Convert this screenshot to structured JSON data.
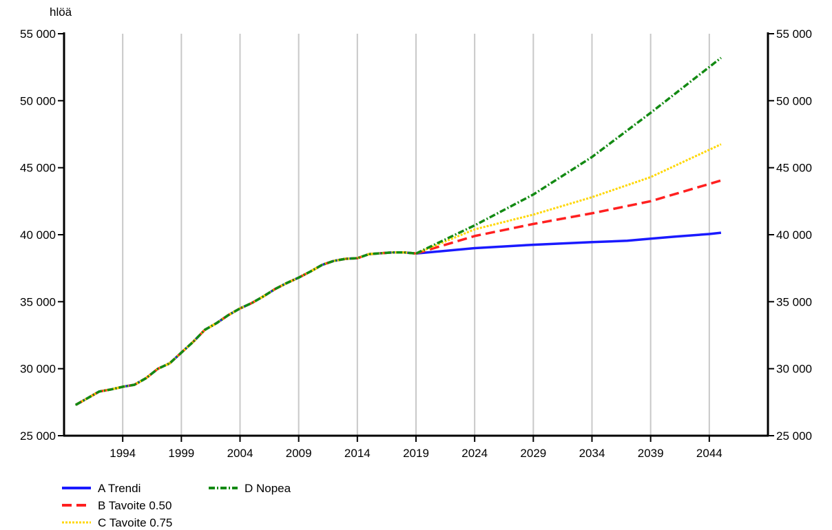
{
  "chart_data": {
    "type": "line",
    "title": "",
    "unit_label": "hlöä",
    "xlabel": "",
    "ylabel": "hlöä",
    "xlim": [
      1989,
      2049
    ],
    "ylim": [
      25000,
      55000
    ],
    "x_ticks": [
      1994,
      1999,
      2004,
      2009,
      2014,
      2019,
      2024,
      2029,
      2034,
      2039,
      2044
    ],
    "x_tick_labels": [
      "1994",
      "1999",
      "2004",
      "2009",
      "2014",
      "2019",
      "2024",
      "2029",
      "2034",
      "2039",
      "2044"
    ],
    "y_ticks": [
      25000,
      30000,
      35000,
      40000,
      45000,
      50000,
      55000
    ],
    "y_tick_labels": [
      "25 000",
      "30 000",
      "35 000",
      "40 000",
      "45 000",
      "50 000",
      "55 000"
    ],
    "grid": "vertical",
    "legend_position": "bottom-left",
    "history": {
      "x": [
        1990,
        1991,
        1992,
        1993,
        1994,
        1995,
        1996,
        1997,
        1998,
        1999,
        2000,
        2001,
        2002,
        2003,
        2004,
        2005,
        2006,
        2007,
        2008,
        2009,
        2010,
        2011,
        2012,
        2013,
        2014,
        2015,
        2016,
        2017,
        2018,
        2019
      ],
      "y": [
        27300,
        27800,
        28300,
        28450,
        28650,
        28800,
        29300,
        30000,
        30400,
        31200,
        32000,
        32900,
        33400,
        34000,
        34500,
        34900,
        35400,
        35950,
        36400,
        36800,
        37250,
        37750,
        38050,
        38200,
        38250,
        38550,
        38620,
        38680,
        38680,
        38600
      ]
    },
    "series": [
      {
        "name": "A Trendi",
        "color": "#1a1aff",
        "style": "solid",
        "x": [
          2019,
          2024,
          2029,
          2034,
          2037,
          2039,
          2041,
          2044,
          2045
        ],
        "y": [
          38600,
          39000,
          39250,
          39450,
          39550,
          39700,
          39850,
          40050,
          40150
        ]
      },
      {
        "name": "B Tavoite 0.50",
        "color": "#ff2020",
        "style": "dashed",
        "x": [
          2019,
          2024,
          2029,
          2034,
          2039,
          2045
        ],
        "y": [
          38600,
          39900,
          40800,
          41600,
          42500,
          44050
        ]
      },
      {
        "name": "C Tavoite 0.75",
        "color": "#ffd700",
        "style": "dotted",
        "x": [
          2019,
          2024,
          2029,
          2034,
          2039,
          2045
        ],
        "y": [
          38600,
          40400,
          41500,
          42800,
          44300,
          46750
        ]
      },
      {
        "name": "D Nopea",
        "color": "#138a13",
        "style": "dash-dot",
        "x": [
          2019,
          2024,
          2029,
          2034,
          2039,
          2045
        ],
        "y": [
          38600,
          40700,
          43000,
          45800,
          49100,
          53200
        ]
      }
    ]
  }
}
